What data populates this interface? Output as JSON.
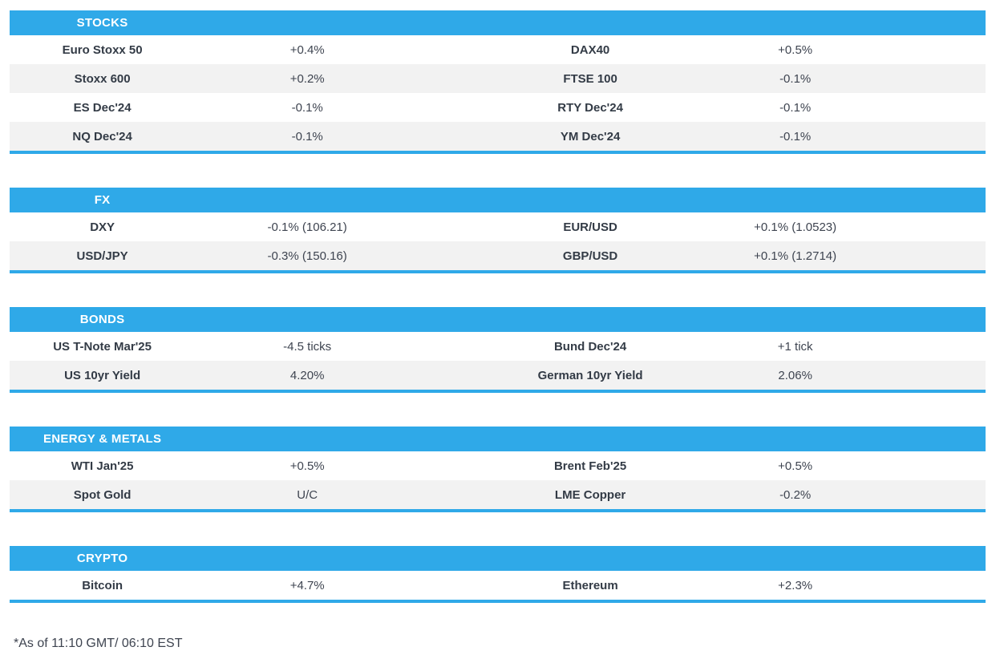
{
  "theme": {
    "accent": "#2fa9e8",
    "header_text_color": "#ffffff",
    "row_bg": "#ffffff",
    "row_alt_bg": "#f2f2f2",
    "label_color": "#333b46",
    "value_color": "#3e4450"
  },
  "footnote": "*As of 11:10 GMT/ 06:10 EST",
  "sections": [
    {
      "title": "STOCKS",
      "rows": [
        [
          {
            "name": "Euro Stoxx 50",
            "value": "+0.4%"
          },
          {
            "name": "DAX40",
            "value": "+0.5%"
          }
        ],
        [
          {
            "name": "Stoxx 600",
            "value": "+0.2%"
          },
          {
            "name": "FTSE 100",
            "value": "-0.1%"
          }
        ],
        [
          {
            "name": "ES Dec'24",
            "value": "-0.1%"
          },
          {
            "name": "RTY Dec'24",
            "value": "-0.1%"
          }
        ],
        [
          {
            "name": "NQ Dec'24",
            "value": "-0.1%"
          },
          {
            "name": "YM Dec'24",
            "value": "-0.1%"
          }
        ]
      ]
    },
    {
      "title": "FX",
      "rows": [
        [
          {
            "name": "DXY",
            "value": "-0.1% (106.21)"
          },
          {
            "name": "EUR/USD",
            "value": "+0.1% (1.0523)"
          }
        ],
        [
          {
            "name": "USD/JPY",
            "value": "-0.3% (150.16)"
          },
          {
            "name": "GBP/USD",
            "value": "+0.1% (1.2714)"
          }
        ]
      ]
    },
    {
      "title": "BONDS",
      "rows": [
        [
          {
            "name": "US T-Note Mar'25",
            "value": "-4.5 ticks"
          },
          {
            "name": "Bund Dec'24",
            "value": "+1 tick"
          }
        ],
        [
          {
            "name": "US 10yr Yield",
            "value": "4.20%"
          },
          {
            "name": "German 10yr Yield",
            "value": "2.06%"
          }
        ]
      ]
    },
    {
      "title": "ENERGY & METALS",
      "rows": [
        [
          {
            "name": "WTI Jan'25",
            "value": "+0.5%"
          },
          {
            "name": "Brent Feb'25",
            "value": "+0.5%"
          }
        ],
        [
          {
            "name": "Spot Gold",
            "value": "U/C"
          },
          {
            "name": "LME Copper",
            "value": "-0.2%"
          }
        ]
      ]
    },
    {
      "title": "CRYPTO",
      "rows": [
        [
          {
            "name": "Bitcoin",
            "value": "+4.7%"
          },
          {
            "name": "Ethereum",
            "value": "+2.3%"
          }
        ]
      ]
    }
  ]
}
